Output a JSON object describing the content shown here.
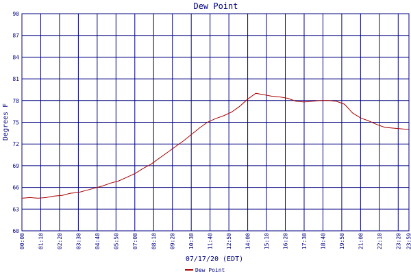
{
  "colors": {
    "grid": "#000080",
    "frame": "#000080",
    "series": "#aa0000",
    "text": "#000080"
  },
  "chart_data": {
    "type": "line",
    "title": "Dew Point",
    "xlabel": "07/17/20 (EDT)",
    "ylabel": "Degrees F",
    "ylim": [
      60,
      90
    ],
    "yticks": [
      60,
      63,
      66,
      69,
      72,
      75,
      78,
      81,
      84,
      87,
      90
    ],
    "xlim": [
      "00:00",
      "24:00"
    ],
    "x_tick_labels": [
      "00:00",
      "01:10",
      "02:20",
      "03:30",
      "04:40",
      "05:50",
      "07:00",
      "08:10",
      "09:20",
      "10:30",
      "11:40",
      "12:50",
      "14:00",
      "15:10",
      "16:20",
      "17:30",
      "18:40",
      "19:50",
      "21:00",
      "22:10",
      "23:20",
      "23:59"
    ],
    "grid": true,
    "legend": "bottom",
    "series": [
      {
        "name": "Dew Point",
        "points": [
          [
            "00:00",
            64.5
          ],
          [
            "00:30",
            64.6
          ],
          [
            "01:00",
            64.5
          ],
          [
            "01:30",
            64.6
          ],
          [
            "02:00",
            64.8
          ],
          [
            "02:30",
            64.9
          ],
          [
            "03:00",
            65.2
          ],
          [
            "03:30",
            65.3
          ],
          [
            "04:00",
            65.6
          ],
          [
            "04:30",
            65.9
          ],
          [
            "05:00",
            66.2
          ],
          [
            "05:30",
            66.6
          ],
          [
            "06:00",
            66.9
          ],
          [
            "06:30",
            67.4
          ],
          [
            "07:00",
            67.9
          ],
          [
            "07:30",
            68.6
          ],
          [
            "08:00",
            69.2
          ],
          [
            "08:30",
            70.0
          ],
          [
            "09:00",
            70.8
          ],
          [
            "09:30",
            71.6
          ],
          [
            "10:00",
            72.4
          ],
          [
            "10:30",
            73.3
          ],
          [
            "11:00",
            74.2
          ],
          [
            "11:30",
            75.0
          ],
          [
            "12:00",
            75.5
          ],
          [
            "12:30",
            75.9
          ],
          [
            "13:00",
            76.4
          ],
          [
            "13:30",
            77.2
          ],
          [
            "14:00",
            78.2
          ],
          [
            "14:30",
            79.0
          ],
          [
            "15:00",
            78.8
          ],
          [
            "15:30",
            78.6
          ],
          [
            "16:00",
            78.5
          ],
          [
            "16:30",
            78.3
          ],
          [
            "17:00",
            77.9
          ],
          [
            "17:30",
            77.8
          ],
          [
            "18:00",
            77.9
          ],
          [
            "18:30",
            78.0
          ],
          [
            "19:00",
            78.0
          ],
          [
            "19:30",
            77.9
          ],
          [
            "20:00",
            77.5
          ],
          [
            "20:30",
            76.3
          ],
          [
            "21:00",
            75.6
          ],
          [
            "21:30",
            75.2
          ],
          [
            "22:00",
            74.7
          ],
          [
            "22:30",
            74.3
          ],
          [
            "23:00",
            74.2
          ],
          [
            "23:30",
            74.1
          ],
          [
            "23:59",
            74.0
          ]
        ]
      }
    ]
  }
}
